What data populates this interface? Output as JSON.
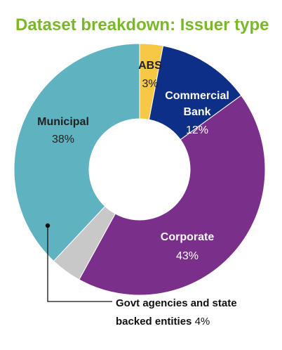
{
  "chart_data": {
    "type": "pie",
    "title": "Dataset breakdown: Issuer type",
    "title_color": "#7ab828",
    "donut": true,
    "unit": "%",
    "slices": [
      {
        "label": "ABS",
        "value": 3,
        "color": "#f7c845"
      },
      {
        "label": "Commercial Bank",
        "value": 12,
        "color": "#0e2f86"
      },
      {
        "label": "Corporate",
        "value": 43,
        "color": "#7a2f8a"
      },
      {
        "label": "Govt agencies and state backed entities",
        "value": 4,
        "color": "#c8c8c8"
      },
      {
        "label": "Municipal",
        "value": 38,
        "color": "#5fb2c0"
      }
    ],
    "labels": {
      "abs_name": "ABS",
      "abs_pct": "3%",
      "bank_name_line1": "Commercial",
      "bank_name_line2": "Bank",
      "bank_pct": "12%",
      "corporate_name": "Corporate",
      "corporate_pct": "43%",
      "municipal_name": "Municipal",
      "municipal_pct": "38%",
      "govt_line1": "Govt agencies and state",
      "govt_line2": "backed entities",
      "govt_pct": "4%"
    }
  }
}
